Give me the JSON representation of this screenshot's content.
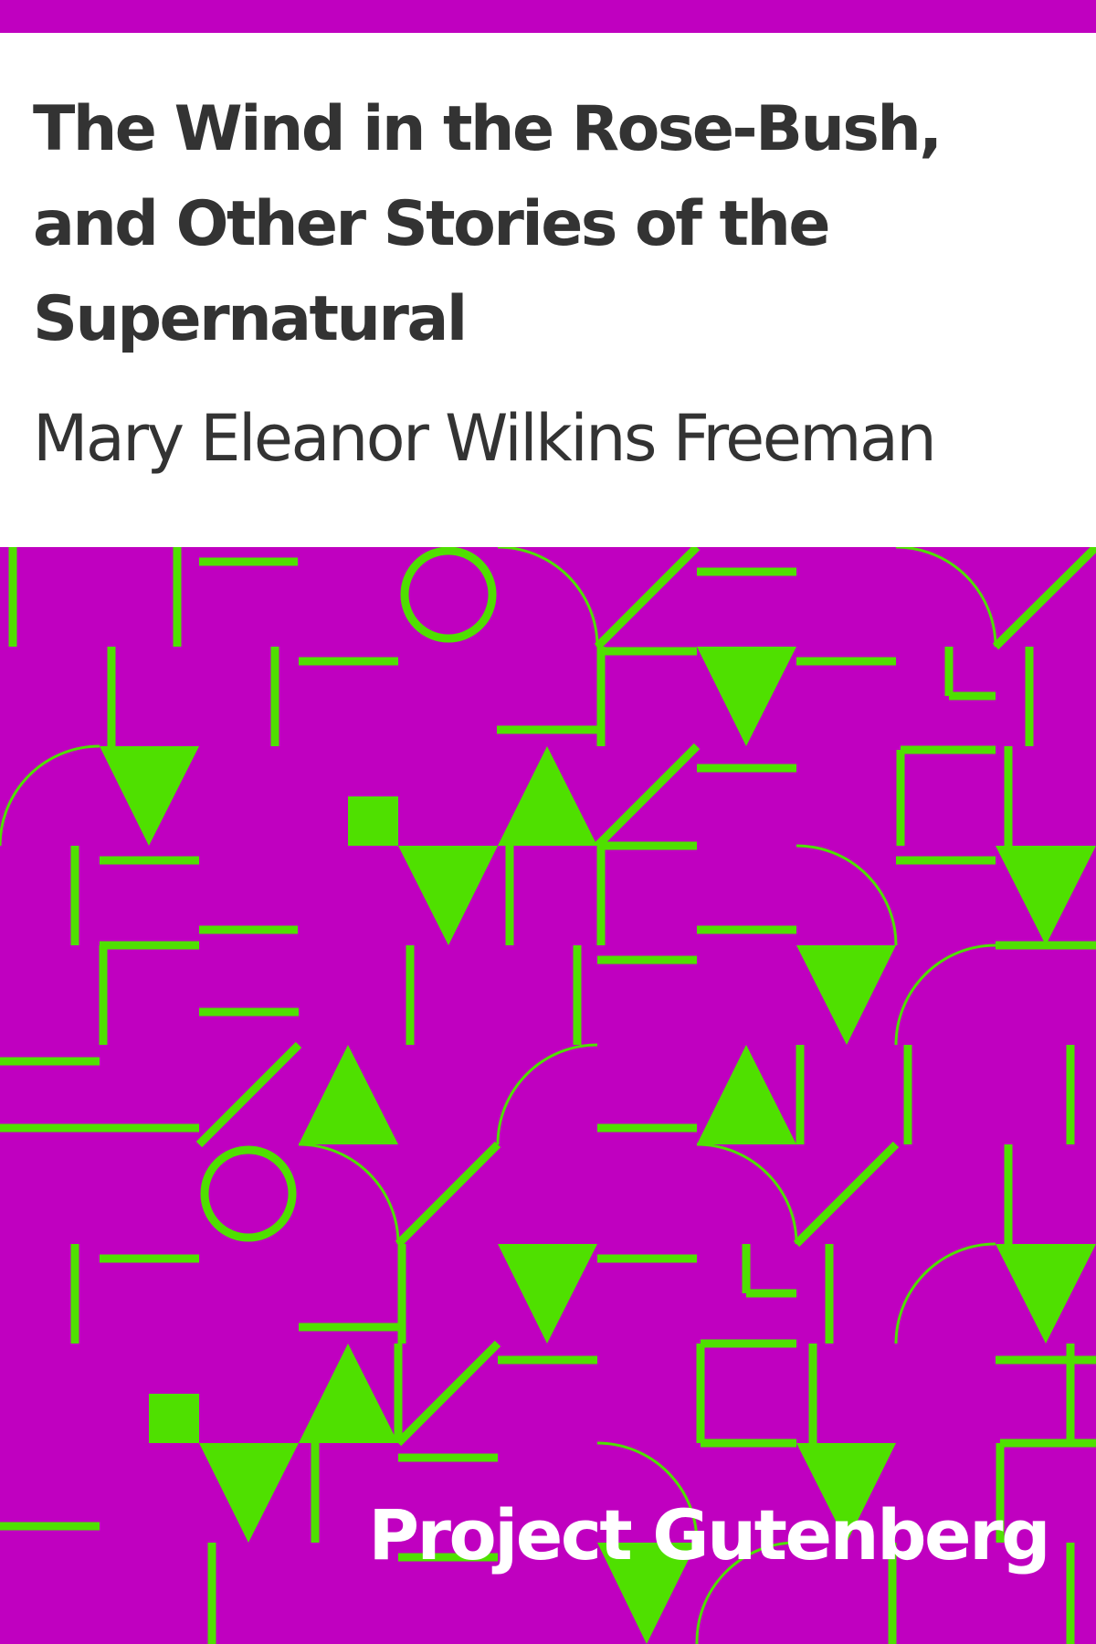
{
  "cover": {
    "title": "The Wind in the Rose-Bush, and Other Stories of the Supernatural",
    "author": "Mary Eleanor Wilkins Freeman",
    "publisher": "Project Gutenberg"
  },
  "colors": {
    "background": "#c000c0",
    "pattern": "#4fe000",
    "panel": "#ffffff",
    "text": "#333333",
    "publisher_text": "#ffffff"
  }
}
